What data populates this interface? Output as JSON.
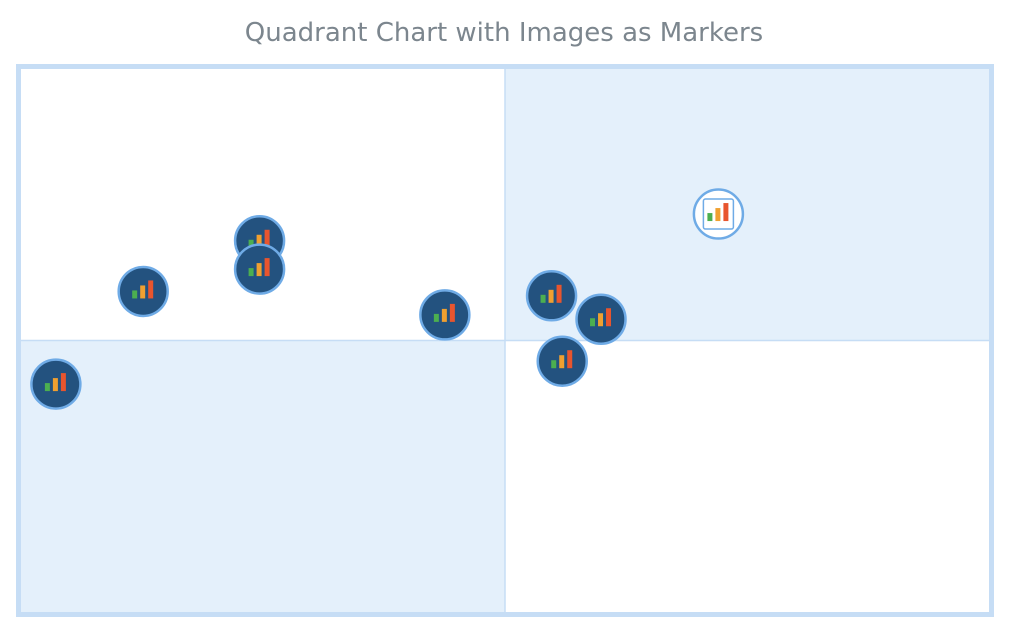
{
  "chart_data": {
    "type": "scatter",
    "title": "Quadrant Chart with Images as Markers",
    "xlim": [
      0,
      100
    ],
    "ylim": [
      0,
      100
    ],
    "axes_visible": false,
    "grid": false,
    "quadrant_dividers": {
      "x": 50,
      "y": 50
    },
    "marker": "bar-chart-image-icon",
    "points": [
      {
        "x": 3.7,
        "y": 42.0
      },
      {
        "x": 12.7,
        "y": 59.0
      },
      {
        "x": 24.7,
        "y": 68.3
      },
      {
        "x": 24.7,
        "y": 63.1
      },
      {
        "x": 43.8,
        "y": 54.7
      },
      {
        "x": 54.8,
        "y": 58.2
      },
      {
        "x": 59.9,
        "y": 53.9
      },
      {
        "x": 55.9,
        "y": 46.2
      },
      {
        "x": 72.0,
        "y": 73.2,
        "highlighted": true
      }
    ]
  },
  "colors": {
    "frame": "#c6ddf5",
    "quadrant_fill": "#e4f0fb",
    "marker_fill": "#23527f",
    "marker_stroke": "#6fabe6",
    "highlight_fill": "#ffffff",
    "bars": [
      "#4caf50",
      "#f0a030",
      "#e8552e"
    ],
    "title": "#7c868e"
  }
}
